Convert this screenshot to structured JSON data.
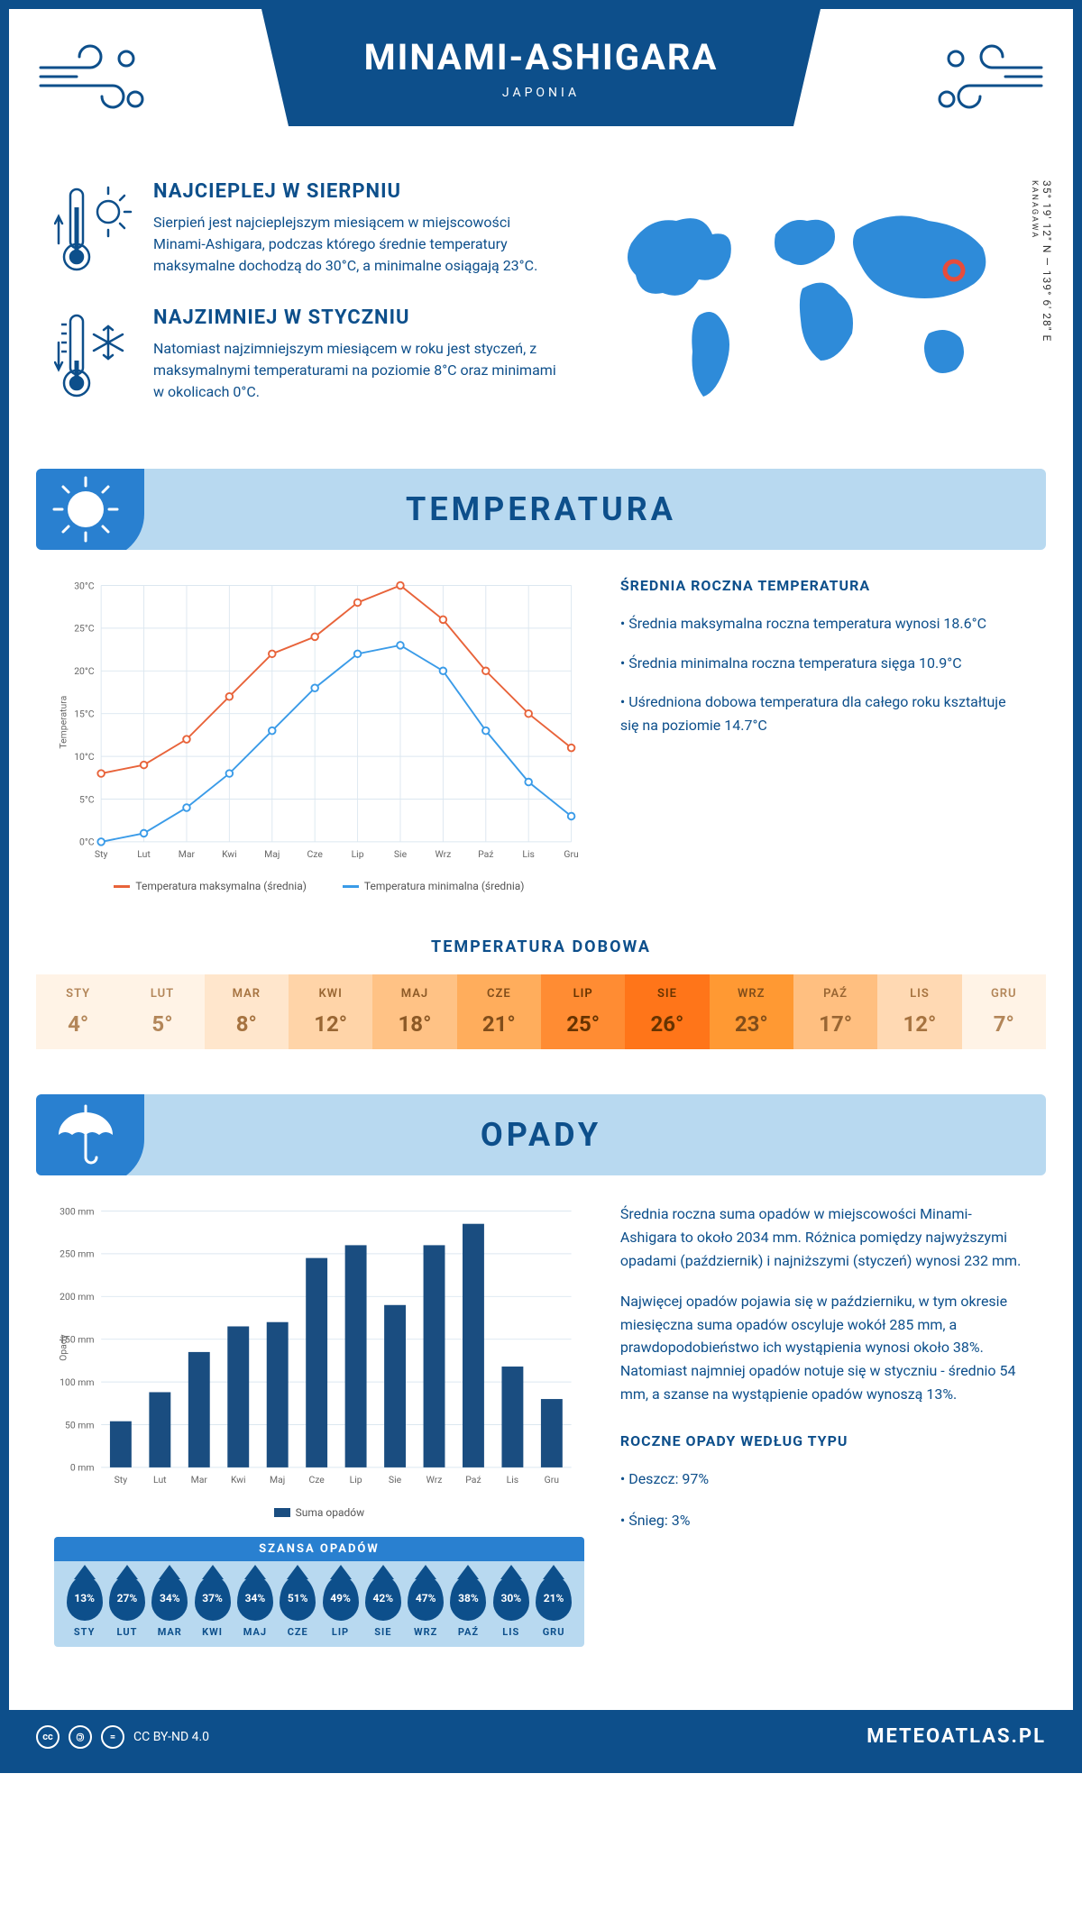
{
  "header": {
    "city": "MINAMI-ASHIGARA",
    "country": "JAPONIA"
  },
  "coords": {
    "lat": "35° 19' 12\" N",
    "lon": "139° 6' 28\" E",
    "region": "KANAGAWA"
  },
  "intro": {
    "hot": {
      "title": "NAJCIEPLEJ W SIERPNIU",
      "text": "Sierpień jest najcieplejszym miesiącem w miejscowości Minami-Ashigara, podczas którego średnie temperatury maksymalne dochodzą do 30°C, a minimalne osiągają 23°C."
    },
    "cold": {
      "title": "NAJZIMNIEJ W STYCZNIU",
      "text": "Natomiast najzimniejszym miesiącem w roku jest styczeń, z maksymalnymi temperaturami na poziomie 8°C oraz minimami w okolicach 0°C."
    }
  },
  "months": [
    "Sty",
    "Lut",
    "Mar",
    "Kwi",
    "Maj",
    "Cze",
    "Lip",
    "Sie",
    "Wrz",
    "Paź",
    "Lis",
    "Gru"
  ],
  "months_upper": [
    "STY",
    "LUT",
    "MAR",
    "KWI",
    "MAJ",
    "CZE",
    "LIP",
    "SIE",
    "WRZ",
    "PAŹ",
    "LIS",
    "GRU"
  ],
  "temp_section": {
    "title": "TEMPERATURA",
    "chart": {
      "type": "line",
      "ylabel": "Temperatura",
      "ylim": [
        0,
        30
      ],
      "ytick_step": 5,
      "y_suffix": "°C",
      "max": {
        "label": "Temperatura maksymalna (średnia)",
        "color": "#e8633a",
        "values": [
          8,
          9,
          12,
          17,
          22,
          24,
          28,
          30,
          26,
          20,
          15,
          11
        ]
      },
      "min": {
        "label": "Temperatura minimalna (średnia)",
        "color": "#3a9be8",
        "values": [
          0,
          1,
          4,
          8,
          13,
          18,
          22,
          23,
          20,
          13,
          7,
          3
        ]
      },
      "grid_color": "#dce7f0",
      "background_color": "#ffffff",
      "marker": "circle",
      "line_width": 2
    },
    "side": {
      "heading": "ŚREDNIA ROCZNA TEMPERATURA",
      "p1": "• Średnia maksymalna roczna temperatura wynosi 18.6°C",
      "p2": "• Średnia minimalna roczna temperatura sięga 10.9°C",
      "p3": "• Uśredniona dobowa temperatura dla całego roku kształtuje się na poziomie 14.7°C"
    },
    "daily_heading": "TEMPERATURA DOBOWA",
    "daily": {
      "values": [
        "4°",
        "5°",
        "8°",
        "12°",
        "18°",
        "21°",
        "25°",
        "26°",
        "23°",
        "17°",
        "12°",
        "7°"
      ],
      "bg_colors": [
        "#fff3e6",
        "#fff3e6",
        "#ffe6cc",
        "#ffd4a8",
        "#ffc285",
        "#ffad5c",
        "#ff8c33",
        "#ff7519",
        "#ff9933",
        "#ffbf80",
        "#ffd9b3",
        "#fff3e6"
      ],
      "text_colors": [
        "#b38659",
        "#b38659",
        "#a67340",
        "#996633",
        "#8c5926",
        "#804d1a",
        "#663300",
        "#663300",
        "#804d1a",
        "#996633",
        "#a67340",
        "#b38659"
      ]
    }
  },
  "precip_section": {
    "title": "OPADY",
    "chart": {
      "type": "bar",
      "ylabel": "Opady",
      "ylim": [
        0,
        300
      ],
      "ytick_step": 50,
      "y_suffix": " mm",
      "label": "Suma opadów",
      "color": "#1a4d80",
      "values": [
        54,
        88,
        135,
        165,
        170,
        245,
        260,
        190,
        260,
        285,
        118,
        80
      ],
      "grid_color": "#dce7f0",
      "background_color": "#ffffff",
      "bar_width": 0.55
    },
    "text": {
      "p1": "Średnia roczna suma opadów w miejscowości Minami-Ashigara to około 2034 mm. Różnica pomiędzy najwyższymi opadami (październik) i najniższymi (styczeń) wynosi 232 mm.",
      "p2": "Najwięcej opadów pojawia się w październiku, w tym okresie miesięczna suma opadów oscyluje wokół 285 mm, a prawdopodobieństwo ich wystąpienia wynosi około 38%. Natomiast najmniej opadów notuje się w styczniu - średnio 54 mm, a szanse na wystąpienie opadów wynoszą 13%."
    },
    "chance": {
      "heading": "SZANSA OPADÓW",
      "values": [
        "13%",
        "27%",
        "34%",
        "37%",
        "34%",
        "51%",
        "49%",
        "42%",
        "47%",
        "38%",
        "30%",
        "21%"
      ],
      "drop_color": "#0d4f8b"
    },
    "type": {
      "heading": "ROCZNE OPADY WEDŁUG TYPU",
      "p1": "• Deszcz: 97%",
      "p2": "• Śnieg: 3%"
    }
  },
  "footer": {
    "license": "CC BY-ND 4.0",
    "brand": "METEOATLAS.PL"
  }
}
